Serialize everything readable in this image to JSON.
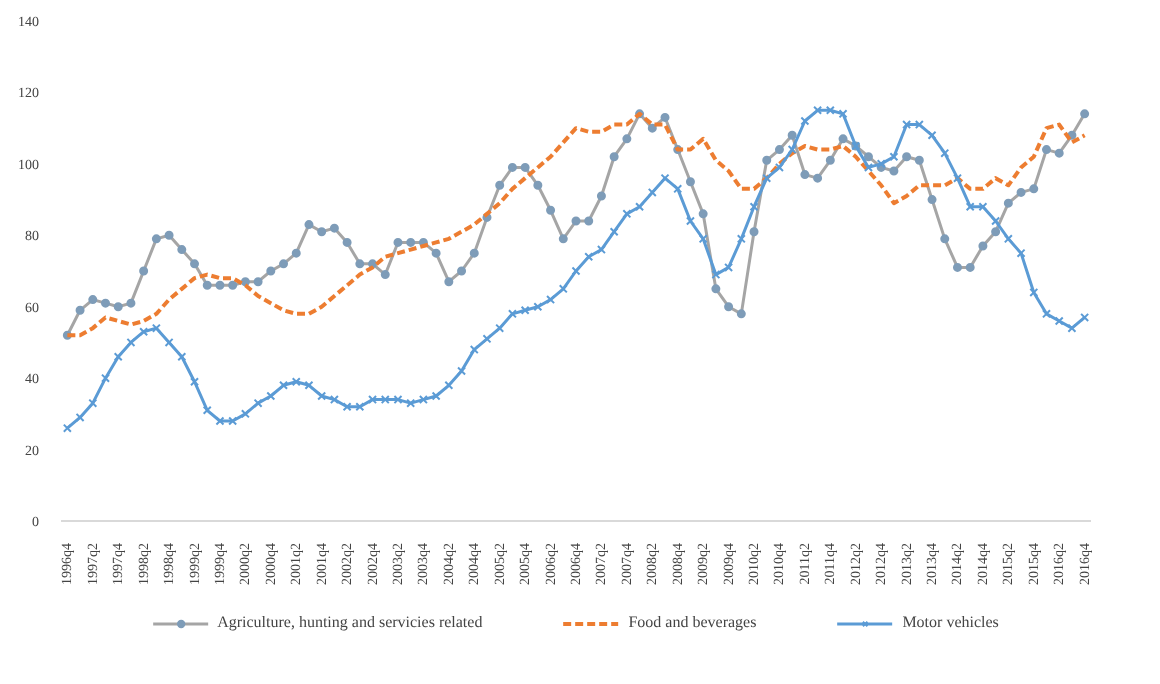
{
  "chart_data": {
    "type": "line",
    "categories": [
      "1996q4",
      null,
      "1997q2",
      null,
      "1997q4",
      null,
      "1998q2",
      null,
      "1998q4",
      null,
      "1999q2",
      null,
      "1999q4",
      null,
      "2000q2",
      null,
      "2000q4",
      null,
      "2001q2",
      null,
      "2001q4",
      null,
      "2002q2",
      null,
      "2002q4",
      null,
      "2003q2",
      null,
      "2003q4",
      null,
      "2004q2",
      null,
      "2004q4",
      null,
      "2005q2",
      null,
      "2005q4",
      null,
      "2006q2",
      null,
      "2006q4",
      null,
      "2007q2",
      null,
      "2007q4",
      null,
      "2008q2",
      null,
      "2008q4",
      null,
      "2009q2",
      null,
      "2009q4",
      null,
      "2010q2",
      null,
      "2010q4",
      null,
      "2011q2",
      null,
      "2011q4",
      null,
      "2012q2",
      null,
      "2012q4",
      null,
      "2013q2",
      null,
      "2013q4",
      null,
      "2014q2",
      null,
      "2014q4",
      null,
      "2015q2",
      null,
      "2015q4",
      null,
      "2016q2",
      null,
      "2016q4"
    ],
    "ylim": [
      0,
      140
    ],
    "yticks": [
      0,
      20,
      40,
      60,
      80,
      100,
      120,
      140
    ],
    "grid": false,
    "legend": "bottom",
    "series": [
      {
        "name": "Agriculture, hunting and servicies related",
        "color": "#a5a5a5",
        "marker": "circle",
        "line_style": "solid",
        "values": [
          52,
          59,
          62,
          61,
          60,
          61,
          70,
          79,
          80,
          76,
          72,
          66,
          66,
          66,
          67,
          67,
          70,
          72,
          75,
          83,
          81,
          82,
          78,
          72,
          72,
          69,
          78,
          78,
          78,
          75,
          67,
          70,
          75,
          85,
          94,
          99,
          99,
          94,
          87,
          79,
          84,
          84,
          91,
          102,
          107,
          114,
          110,
          113,
          104,
          95,
          86,
          65,
          60,
          58,
          81,
          101,
          104,
          108,
          97,
          96,
          101,
          107,
          105,
          102,
          99,
          98,
          102,
          101,
          90,
          79,
          71,
          71,
          77,
          81,
          89,
          92,
          93,
          104,
          103,
          108,
          114
        ]
      },
      {
        "name": "Food and beverages",
        "color": "#ed7d31",
        "marker": "none",
        "line_style": "dashed",
        "values": [
          52,
          52,
          54,
          57,
          56,
          55,
          56,
          58,
          62,
          65,
          68,
          69,
          68,
          68,
          66,
          63,
          61,
          59,
          58,
          58,
          60,
          63,
          66,
          69,
          71,
          74,
          75,
          76,
          77,
          78,
          79,
          81,
          83,
          86,
          89,
          93,
          96,
          99,
          102,
          106,
          110,
          109,
          109,
          111,
          111,
          114,
          111,
          111,
          104,
          104,
          107,
          101,
          98,
          93,
          93,
          96,
          100,
          103,
          105,
          104,
          104,
          105,
          102,
          98,
          94,
          89,
          91,
          94,
          94,
          94,
          96,
          93,
          93,
          96,
          94,
          99,
          102,
          110,
          111,
          106,
          108
        ]
      },
      {
        "name": "Motor vehicles",
        "color": "#5b9bd5",
        "marker": "cross",
        "line_style": "solid",
        "values": [
          26,
          29,
          33,
          40,
          46,
          50,
          53,
          54,
          50,
          46,
          39,
          31,
          28,
          28,
          30,
          33,
          35,
          38,
          39,
          38,
          35,
          34,
          32,
          32,
          34,
          34,
          34,
          33,
          34,
          35,
          38,
          42,
          48,
          51,
          54,
          58,
          59,
          60,
          62,
          65,
          70,
          74,
          76,
          81,
          86,
          88,
          92,
          96,
          93,
          84,
          79,
          69,
          71,
          79,
          88,
          96,
          99,
          104,
          112,
          115,
          115,
          114,
          105,
          99,
          100,
          102,
          111,
          111,
          108,
          103,
          96,
          88,
          88,
          84,
          79,
          75,
          64,
          58,
          56,
          54,
          57
        ]
      }
    ]
  }
}
